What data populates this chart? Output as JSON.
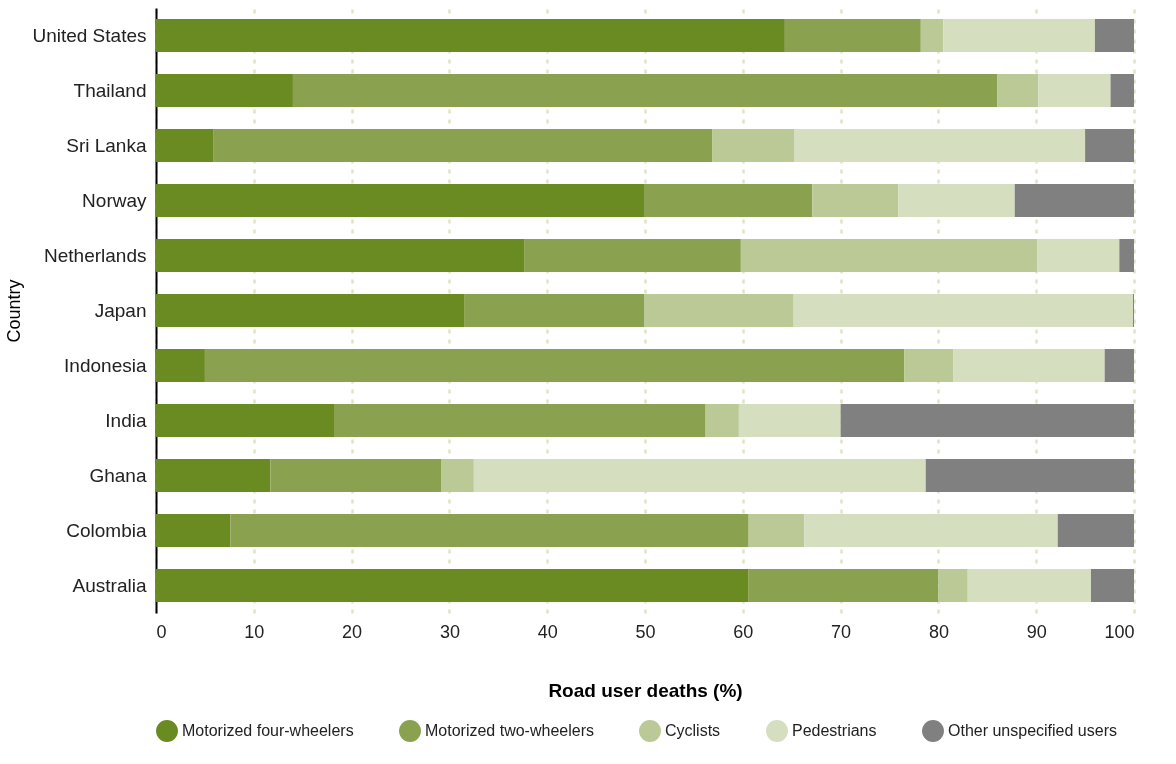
{
  "chart_data": {
    "type": "bar",
    "orientation": "horizontal",
    "stacked": true,
    "xlabel": "Road user deaths (%)",
    "ylabel": "Country",
    "categories": [
      "United States",
      "Thailand",
      "Sri Lanka",
      "Norway",
      "Netherlands",
      "Japan",
      "Indonesia",
      "India",
      "Ghana",
      "Colombia",
      "Australia"
    ],
    "series": [
      {
        "name": "Motorized four-wheelers",
        "color": "#6a8a22",
        "values": [
          64.3,
          14,
          5.9,
          49.9,
          37.7,
          31.5,
          5,
          18.2,
          11.7,
          7.6,
          60.6
        ]
      },
      {
        "name": "Motorized two-wheelers",
        "color": "#8aa150",
        "values": [
          13.9,
          72,
          51,
          17.2,
          22.1,
          18.4,
          71.5,
          38,
          17.5,
          53,
          19.4
        ]
      },
      {
        "name": "Cyclists",
        "color": "#bac995",
        "values": [
          2.3,
          4.2,
          8.4,
          8.8,
          30.3,
          15.3,
          5,
          3.4,
          3.3,
          5.7,
          3
        ]
      },
      {
        "name": "Pedestrians",
        "color": "#d5dfc0",
        "values": [
          15.5,
          7.4,
          29.7,
          11.9,
          8.4,
          34.7,
          15.5,
          10.4,
          46.2,
          25.9,
          12.6
        ]
      },
      {
        "name": "Other unspecified users",
        "color": "#808080",
        "values": [
          4,
          2.4,
          5,
          12.2,
          1.5,
          0.1,
          3,
          30,
          21.3,
          7.8,
          4.4
        ]
      }
    ],
    "xlim": [
      0,
      100
    ],
    "xticks": [
      0,
      10,
      20,
      30,
      40,
      50,
      60,
      70,
      80,
      90,
      100
    ],
    "grid": "x",
    "legend": "bottom"
  }
}
